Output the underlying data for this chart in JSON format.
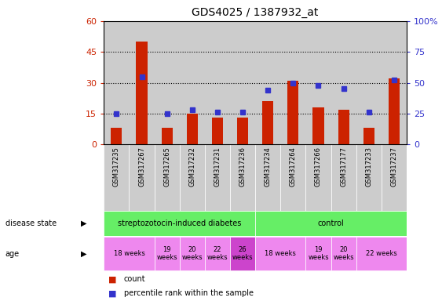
{
  "title": "GDS4025 / 1387932_at",
  "samples": [
    "GSM317235",
    "GSM317267",
    "GSM317265",
    "GSM317232",
    "GSM317231",
    "GSM317236",
    "GSM317234",
    "GSM317264",
    "GSM317266",
    "GSM317177",
    "GSM317233",
    "GSM317237"
  ],
  "counts": [
    8,
    50,
    8,
    15,
    13,
    13,
    21,
    31,
    18,
    17,
    8,
    32
  ],
  "percentiles": [
    25,
    55,
    25,
    28,
    26,
    26,
    44,
    50,
    48,
    45,
    26,
    52
  ],
  "ylim_left": [
    0,
    60
  ],
  "ylim_right": [
    0,
    100
  ],
  "yticks_left": [
    0,
    15,
    30,
    45,
    60
  ],
  "yticks_right": [
    0,
    25,
    50,
    75,
    100
  ],
  "ytick_labels_right": [
    "0",
    "25",
    "50",
    "75",
    "100%"
  ],
  "bar_color": "#cc2200",
  "dot_color": "#3333cc",
  "bar_bg": "#cccccc",
  "disease_color": "#66ee66",
  "age_color_normal": "#ee88ee",
  "age_color_highlight": "#cc44cc",
  "legend_count_label": "count",
  "legend_pct_label": "percentile rank within the sample",
  "disease_state_label": "disease state",
  "age_label": "age",
  "age_groups": [
    {
      "start": 0,
      "end": 2,
      "label": "18 weeks",
      "highlight": false
    },
    {
      "start": 2,
      "end": 3,
      "label": "19\nweeks",
      "highlight": false
    },
    {
      "start": 3,
      "end": 4,
      "label": "20\nweeks",
      "highlight": false
    },
    {
      "start": 4,
      "end": 5,
      "label": "22\nweeks",
      "highlight": false
    },
    {
      "start": 5,
      "end": 6,
      "label": "26\nweeks",
      "highlight": true
    },
    {
      "start": 6,
      "end": 8,
      "label": "18 weeks",
      "highlight": false
    },
    {
      "start": 8,
      "end": 9,
      "label": "19\nweeks",
      "highlight": false
    },
    {
      "start": 9,
      "end": 10,
      "label": "20\nweeks",
      "highlight": false
    },
    {
      "start": 10,
      "end": 12,
      "label": "22 weeks",
      "highlight": false
    }
  ]
}
